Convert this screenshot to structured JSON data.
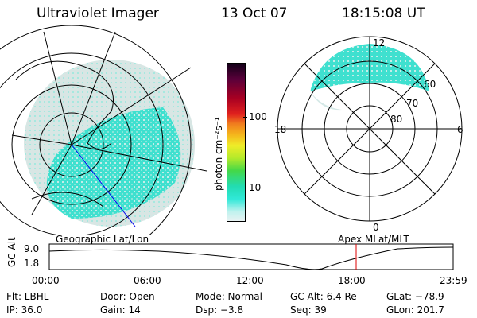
{
  "header": {
    "title": "Ultraviolet Imager",
    "date": "13 Oct 07",
    "time": "18:15:08 UT"
  },
  "colorbar": {
    "unit_label": "photon cm⁻²s⁻¹",
    "ticks": [
      "100",
      "10"
    ],
    "colors": [
      "#120018",
      "#5a003a",
      "#a80022",
      "#e0201e",
      "#f07a1e",
      "#f5b51c",
      "#f0ec28",
      "#b4ea2a",
      "#44d848",
      "#22dcb2",
      "#30e8d8",
      "#bff2ee",
      "#e8f2f2"
    ]
  },
  "polar_plot": {
    "mlt_labels": {
      "top": "12",
      "left": "18",
      "right": "6",
      "bottom": "0"
    },
    "lat_labels": [
      "60",
      "70",
      "80"
    ]
  },
  "timeline": {
    "ylabel": "GC Alt",
    "ytick_top": "9.0",
    "ytick_bottom": "1.8",
    "left_label": "Geographic Lat/Lon",
    "right_label": "Apex MLat/MLT",
    "xticks": [
      "00:00",
      "06:00",
      "12:00",
      "18:00",
      "23:59"
    ],
    "current_time_marker": "18:15:08",
    "marker_color": "#dd0000"
  },
  "info": {
    "filter": "Flt: LBHL",
    "door": "Door: Open",
    "mode": "Mode: Normal",
    "gc_alt": "GC Alt: 6.4 Re",
    "glat": "GLat: −78.9",
    "ip": "IP: 36.0",
    "gain": "Gain: 14",
    "dsp": "Dsp:    −3.8",
    "seq": "Seq: 39",
    "glon": "GLon: 201.7"
  }
}
